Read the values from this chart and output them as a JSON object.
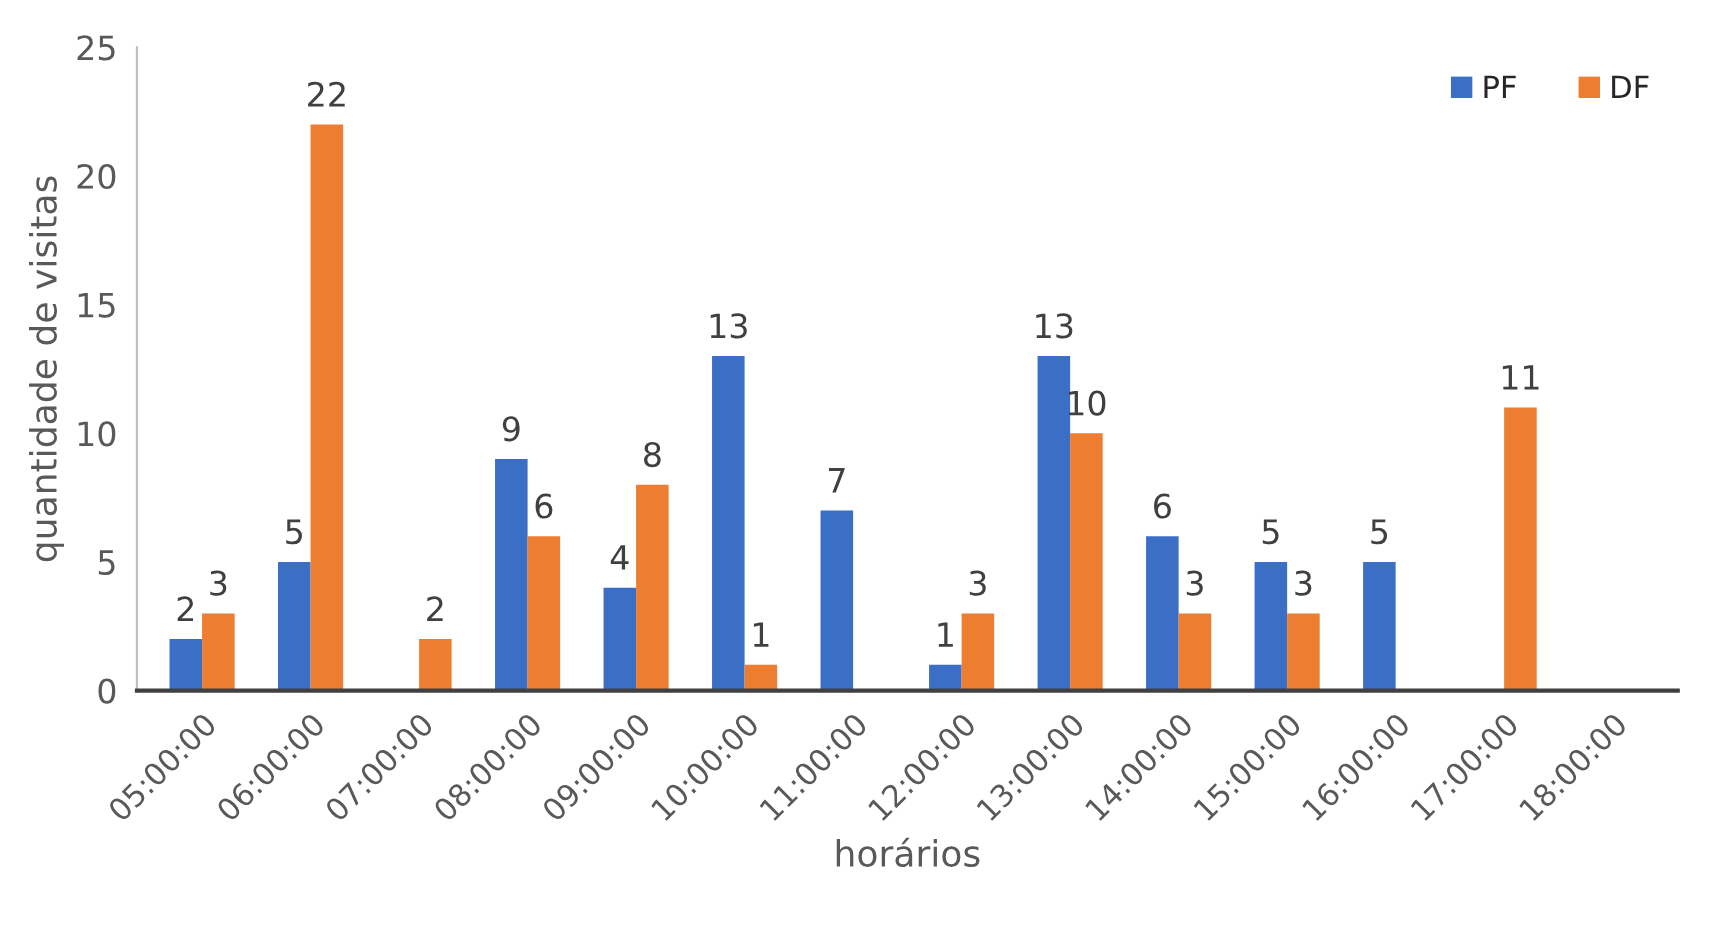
{
  "chart_data": {
    "type": "bar",
    "xlabel": "horários",
    "ylabel": "quantidade de visitas",
    "categories": [
      "05:00:00",
      "06:00:00",
      "07:00:00",
      "08:00:00",
      "09:00:00",
      "10:00:00",
      "11:00:00",
      "12:00:00",
      "13:00:00",
      "14:00:00",
      "15:00:00",
      "16:00:00",
      "17:00:00",
      "18:00:00"
    ],
    "series": [
      {
        "name": "PF",
        "color": "#3b6fc6",
        "values": [
          2,
          5,
          null,
          9,
          4,
          13,
          7,
          1,
          13,
          6,
          5,
          5,
          null,
          null
        ]
      },
      {
        "name": "DF",
        "color": "#ed7d31",
        "values": [
          3,
          22,
          2,
          6,
          8,
          1,
          null,
          3,
          10,
          3,
          3,
          null,
          11,
          null
        ]
      }
    ],
    "ylim": [
      0,
      25
    ],
    "yticks": [
      0,
      5,
      10,
      15,
      20,
      25
    ],
    "grid": false,
    "legend": "top right",
    "data_labels": true
  }
}
